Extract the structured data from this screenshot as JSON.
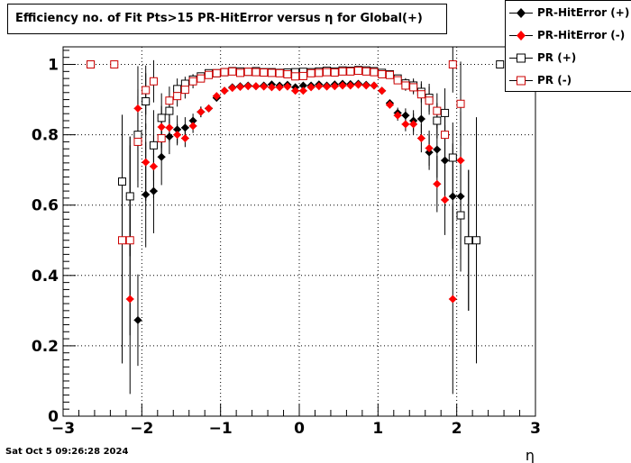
{
  "chart_data": {
    "type": "scatter",
    "title": "Efficiency no. of Fit Pts>15 PR-HitError versus η for Global(+)",
    "xlabel": "η",
    "ylabel": "",
    "xlim": [
      -3,
      3
    ],
    "ylim": [
      0,
      1.05
    ],
    "x_ticks": [
      -3,
      -2,
      -1,
      0,
      1,
      2,
      3
    ],
    "x_tick_labels": [
      "−3",
      "−2",
      "−1",
      "0",
      "1",
      "2",
      "3"
    ],
    "y_ticks": [
      0,
      0.2,
      0.4,
      0.6,
      0.8,
      1
    ],
    "y_tick_labels": [
      "0",
      "0.2",
      "0.4",
      "0.6",
      "0.8",
      "1"
    ],
    "grid": true,
    "legend_position": "top-right",
    "series": [
      {
        "name": "PR-HitError (+)",
        "color": "#000000",
        "marker": "diamond-filled",
        "points": [
          [
            -2.65,
            1.0,
            0
          ],
          [
            -2.15,
            0.625,
            0.17
          ],
          [
            -2.05,
            0.273,
            0.13
          ],
          [
            -1.95,
            0.63,
            0.15
          ],
          [
            -1.85,
            0.64,
            0.12
          ],
          [
            -1.75,
            0.737,
            0.08
          ],
          [
            -1.65,
            0.795,
            0.05
          ],
          [
            -1.55,
            0.815,
            0.04
          ],
          [
            -1.45,
            0.82,
            0.03
          ],
          [
            -1.35,
            0.84,
            0.02
          ],
          [
            -1.25,
            0.865,
            0.015
          ],
          [
            -1.15,
            0.875,
            0.01
          ],
          [
            -1.05,
            0.905,
            0.01
          ],
          [
            -0.95,
            0.925,
            0
          ],
          [
            -0.85,
            0.935,
            0
          ],
          [
            -0.75,
            0.938,
            0
          ],
          [
            -0.65,
            0.94,
            0
          ],
          [
            -0.55,
            0.938,
            0
          ],
          [
            -0.45,
            0.94,
            0
          ],
          [
            -0.35,
            0.943,
            0
          ],
          [
            -0.25,
            0.94,
            0
          ],
          [
            -0.15,
            0.942,
            0
          ],
          [
            -0.05,
            0.935,
            0
          ],
          [
            0.05,
            0.94,
            0
          ],
          [
            0.15,
            0.94,
            0
          ],
          [
            0.25,
            0.943,
            0
          ],
          [
            0.35,
            0.94,
            0
          ],
          [
            0.45,
            0.943,
            0
          ],
          [
            0.55,
            0.945,
            0
          ],
          [
            0.65,
            0.944,
            0
          ],
          [
            0.75,
            0.945,
            0
          ],
          [
            0.85,
            0.942,
            0
          ],
          [
            0.95,
            0.94,
            0
          ],
          [
            1.05,
            0.925,
            0
          ],
          [
            1.15,
            0.89,
            0.01
          ],
          [
            1.25,
            0.862,
            0.015
          ],
          [
            1.35,
            0.855,
            0.02
          ],
          [
            1.45,
            0.84,
            0.03
          ],
          [
            1.55,
            0.845,
            0.04
          ],
          [
            1.65,
            0.75,
            0.05
          ],
          [
            1.75,
            0.758,
            0.08
          ],
          [
            1.85,
            0.727,
            0.1
          ],
          [
            1.95,
            0.625,
            0.15
          ],
          [
            2.05,
            0.625,
            0.18
          ],
          [
            2.15,
            0.5,
            0.2
          ]
        ]
      },
      {
        "name": "PR-HitError (-)",
        "color": "#ff0000",
        "marker": "diamond-filled",
        "points": [
          [
            -2.65,
            1.0,
            0
          ],
          [
            -2.35,
            1.0,
            0
          ],
          [
            -2.25,
            0.5,
            0.35
          ],
          [
            -2.15,
            0.333,
            0.27
          ],
          [
            -2.05,
            0.875,
            0.12
          ],
          [
            -1.95,
            0.722,
            0.11
          ],
          [
            -1.85,
            0.71,
            0.09
          ],
          [
            -1.75,
            0.822,
            0.06
          ],
          [
            -1.65,
            0.82,
            0.04
          ],
          [
            -1.55,
            0.8,
            0.03
          ],
          [
            -1.45,
            0.79,
            0.025
          ],
          [
            -1.35,
            0.825,
            0.02
          ],
          [
            -1.25,
            0.865,
            0.015
          ],
          [
            -1.15,
            0.875,
            0.01
          ],
          [
            -1.05,
            0.91,
            0.01
          ],
          [
            -0.95,
            0.925,
            0
          ],
          [
            -0.85,
            0.933,
            0
          ],
          [
            -0.75,
            0.936,
            0
          ],
          [
            -0.65,
            0.938,
            0
          ],
          [
            -0.55,
            0.938,
            0
          ],
          [
            -0.45,
            0.937,
            0
          ],
          [
            -0.35,
            0.935,
            0
          ],
          [
            -0.25,
            0.935,
            0
          ],
          [
            -0.15,
            0.937,
            0
          ],
          [
            -0.05,
            0.925,
            0
          ],
          [
            0.05,
            0.925,
            0
          ],
          [
            0.15,
            0.935,
            0
          ],
          [
            0.25,
            0.938,
            0
          ],
          [
            0.35,
            0.937,
            0
          ],
          [
            0.45,
            0.938,
            0
          ],
          [
            0.55,
            0.94,
            0
          ],
          [
            0.65,
            0.94,
            0
          ],
          [
            0.75,
            0.942,
            0
          ],
          [
            0.85,
            0.94,
            0
          ],
          [
            0.95,
            0.94,
            0
          ],
          [
            1.05,
            0.925,
            0
          ],
          [
            1.15,
            0.885,
            0.01
          ],
          [
            1.25,
            0.855,
            0.015
          ],
          [
            1.35,
            0.83,
            0.02
          ],
          [
            1.45,
            0.83,
            0.03
          ],
          [
            1.55,
            0.79,
            0.04
          ],
          [
            1.65,
            0.762,
            0.05
          ],
          [
            1.75,
            0.66,
            0.08
          ],
          [
            1.85,
            0.615,
            0.1
          ],
          [
            1.95,
            0.333,
            0.27
          ],
          [
            2.05,
            0.727,
            0.14
          ]
        ]
      },
      {
        "name": "PR (+)",
        "color": "#000000",
        "marker": "square-open",
        "points": [
          [
            -2.65,
            1.0,
            0
          ],
          [
            -2.25,
            0.667,
            0.19
          ],
          [
            -2.15,
            0.625,
            0.17
          ],
          [
            -2.05,
            0.8,
            0.13
          ],
          [
            -1.95,
            0.895,
            0.08
          ],
          [
            -1.85,
            0.77,
            0.1
          ],
          [
            -1.75,
            0.848,
            0.07
          ],
          [
            -1.65,
            0.868,
            0.04
          ],
          [
            -1.55,
            0.93,
            0.03
          ],
          [
            -1.45,
            0.945,
            0.02
          ],
          [
            -1.35,
            0.957,
            0.015
          ],
          [
            -1.25,
            0.966,
            0.01
          ],
          [
            -1.15,
            0.975,
            0
          ],
          [
            -1.05,
            0.975,
            0
          ],
          [
            -0.95,
            0.978,
            0
          ],
          [
            -0.85,
            0.981,
            0
          ],
          [
            -0.75,
            0.98,
            0
          ],
          [
            -0.65,
            0.979,
            0
          ],
          [
            -0.55,
            0.981,
            0
          ],
          [
            -0.45,
            0.978,
            0
          ],
          [
            -0.35,
            0.978,
            0
          ],
          [
            -0.25,
            0.976,
            0
          ],
          [
            -0.15,
            0.977,
            0
          ],
          [
            -0.05,
            0.978,
            0
          ],
          [
            0.05,
            0.979,
            0
          ],
          [
            0.15,
            0.978,
            0
          ],
          [
            0.25,
            0.98,
            0
          ],
          [
            0.35,
            0.982,
            0
          ],
          [
            0.45,
            0.98,
            0
          ],
          [
            0.55,
            0.983,
            0
          ],
          [
            0.65,
            0.982,
            0
          ],
          [
            0.75,
            0.984,
            0
          ],
          [
            0.85,
            0.983,
            0
          ],
          [
            0.95,
            0.981,
            0
          ],
          [
            1.05,
            0.976,
            0
          ],
          [
            1.15,
            0.972,
            0
          ],
          [
            1.25,
            0.96,
            0.01
          ],
          [
            1.35,
            0.946,
            0.015
          ],
          [
            1.45,
            0.94,
            0.02
          ],
          [
            1.55,
            0.922,
            0.03
          ],
          [
            1.65,
            0.905,
            0.04
          ],
          [
            1.75,
            0.84,
            0.05
          ],
          [
            1.85,
            0.862,
            0.07
          ],
          [
            1.95,
            0.735,
            0.1
          ],
          [
            2.05,
            0.571,
            0.16
          ],
          [
            2.15,
            0.5,
            0.2
          ],
          [
            2.25,
            0.5,
            0.35
          ],
          [
            2.55,
            1.0,
            0
          ]
        ]
      },
      {
        "name": "PR (-)",
        "color": "#cc0000",
        "marker": "square-open",
        "points": [
          [
            -2.65,
            1.0,
            0
          ],
          [
            -2.35,
            1.0,
            0
          ],
          [
            -2.25,
            0.5,
            0.35
          ],
          [
            -2.15,
            0.5,
            0.27
          ],
          [
            -2.05,
            0.78,
            0.13
          ],
          [
            -1.95,
            0.927,
            0.07
          ],
          [
            -1.85,
            0.952,
            0.06
          ],
          [
            -1.75,
            0.79,
            0.06
          ],
          [
            -1.65,
            0.897,
            0.04
          ],
          [
            -1.55,
            0.91,
            0.03
          ],
          [
            -1.45,
            0.928,
            0.025
          ],
          [
            -1.35,
            0.952,
            0.02
          ],
          [
            -1.25,
            0.96,
            0.01
          ],
          [
            -1.15,
            0.97,
            0
          ],
          [
            -1.05,
            0.975,
            0
          ],
          [
            -0.95,
            0.978,
            0
          ],
          [
            -0.85,
            0.98,
            0
          ],
          [
            -0.75,
            0.976,
            0
          ],
          [
            -0.65,
            0.979,
            0
          ],
          [
            -0.55,
            0.978,
            0
          ],
          [
            -0.45,
            0.977,
            0
          ],
          [
            -0.35,
            0.976,
            0
          ],
          [
            -0.25,
            0.975,
            0
          ],
          [
            -0.15,
            0.972,
            0
          ],
          [
            -0.05,
            0.966,
            0
          ],
          [
            0.05,
            0.967,
            0
          ],
          [
            0.15,
            0.975,
            0
          ],
          [
            0.25,
            0.976,
            0
          ],
          [
            0.35,
            0.978,
            0
          ],
          [
            0.45,
            0.977,
            0
          ],
          [
            0.55,
            0.98,
            0
          ],
          [
            0.65,
            0.98,
            0
          ],
          [
            0.75,
            0.982,
            0
          ],
          [
            0.85,
            0.98,
            0
          ],
          [
            0.95,
            0.978,
            0
          ],
          [
            1.05,
            0.972,
            0
          ],
          [
            1.15,
            0.97,
            0
          ],
          [
            1.25,
            0.955,
            0.01
          ],
          [
            1.35,
            0.94,
            0.015
          ],
          [
            1.45,
            0.935,
            0.02
          ],
          [
            1.55,
            0.915,
            0.03
          ],
          [
            1.65,
            0.897,
            0.04
          ],
          [
            1.75,
            0.868,
            0.05
          ],
          [
            1.85,
            0.8,
            0.07
          ],
          [
            1.95,
            1.0,
            0.08
          ],
          [
            2.05,
            0.888,
            0.12
          ]
        ]
      }
    ]
  },
  "footer": {
    "timestamp": "Sat Oct  5 09:26:28 2024"
  }
}
